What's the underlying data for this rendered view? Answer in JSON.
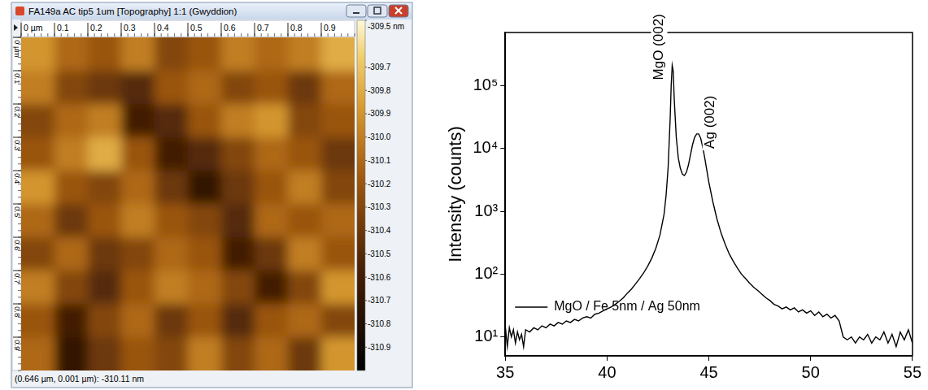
{
  "afm_window": {
    "title": "FA149a AC tip5 1um [Topography] 1:1 (Gwyddion)",
    "x_ruler": [
      {
        "value": 0,
        "label": "0 µm"
      },
      0.1,
      0.2,
      0.3,
      0.4,
      0.5,
      0.6,
      0.7,
      0.8,
      0.9
    ],
    "y_ruler": [
      {
        "value": 0,
        "label": "0 µm"
      },
      0.1,
      0.2,
      0.3,
      0.4,
      0.5,
      0.6,
      0.7,
      0.8,
      0.9
    ],
    "image": {
      "xlim": [
        0,
        1
      ],
      "ylim": [
        0,
        1
      ],
      "cells": [
        [
          -309.9,
          -310.1,
          -310.2,
          -310.0,
          -310.3,
          -310.2,
          -310.0,
          -310.1,
          -310.0,
          -309.8
        ],
        [
          -310.0,
          -310.3,
          -310.4,
          -310.5,
          -310.2,
          -310.1,
          -310.3,
          -310.2,
          -310.4,
          -310.1
        ],
        [
          -310.3,
          -310.1,
          -310.0,
          -310.6,
          -310.5,
          -310.2,
          -310.0,
          -309.9,
          -310.3,
          -310.2
        ],
        [
          -310.2,
          -310.0,
          -309.8,
          -310.2,
          -310.6,
          -310.5,
          -310.3,
          -310.1,
          -310.2,
          -310.4
        ],
        [
          -309.9,
          -310.2,
          -310.3,
          -310.1,
          -310.4,
          -310.7,
          -310.4,
          -310.2,
          -310.0,
          -310.3
        ],
        [
          -310.1,
          -310.4,
          -310.2,
          -310.0,
          -310.2,
          -310.3,
          -310.5,
          -310.1,
          -310.2,
          -310.1
        ],
        [
          -310.3,
          -310.1,
          -310.4,
          -310.3,
          -310.1,
          -310.2,
          -310.6,
          -310.4,
          -310.0,
          -310.2
        ],
        [
          -310.0,
          -310.3,
          -310.5,
          -310.2,
          -310.0,
          -310.1,
          -310.3,
          -310.6,
          -310.3,
          -309.9
        ],
        [
          -310.2,
          -310.6,
          -310.3,
          -310.1,
          -310.4,
          -310.2,
          -310.5,
          -310.2,
          -310.1,
          -310.3
        ],
        [
          -310.1,
          -310.7,
          -310.4,
          -310.2,
          -310.3,
          -310.0,
          -310.3,
          -310.1,
          -310.4,
          -309.9
        ]
      ]
    },
    "colorbar": {
      "range": [
        -311.0,
        -309.5
      ],
      "ticks": [
        {
          "value": -309.5,
          "label": "-309.5 nm"
        },
        -309.7,
        -309.8,
        -309.9,
        {
          "value": -310.0,
          "label": "-310.0"
        },
        -310.1,
        -310.2,
        -310.3,
        -310.4,
        -310.5,
        -310.6,
        -310.7,
        -310.8,
        -310.9
      ]
    },
    "status_bar": "(0.646 µm, 0.001 µm): -310.11 nm"
  },
  "chart_data": {
    "type": "line",
    "ylabel": "Intensity (counts)",
    "x": [
      35.0,
      35.1,
      35.2,
      35.3,
      35.4,
      35.5,
      35.6,
      35.7,
      35.8,
      35.9,
      36.0,
      36.2,
      36.4,
      36.6,
      36.8,
      37.0,
      37.2,
      37.4,
      37.6,
      37.8,
      38.0,
      38.2,
      38.4,
      38.6,
      38.8,
      39.0,
      39.2,
      39.4,
      39.6,
      39.8,
      40.0,
      40.2,
      40.4,
      40.6,
      40.8,
      41.0,
      41.2,
      41.4,
      41.6,
      41.8,
      42.0,
      42.2,
      42.4,
      42.6,
      42.8,
      42.9,
      43.0,
      43.1,
      43.15,
      43.2,
      43.25,
      43.3,
      43.4,
      43.5,
      43.6,
      43.7,
      43.8,
      43.9,
      44.0,
      44.1,
      44.2,
      44.3,
      44.4,
      44.5,
      44.6,
      44.7,
      44.8,
      44.9,
      45.0,
      45.2,
      45.4,
      45.6,
      45.8,
      46.0,
      46.2,
      46.4,
      46.6,
      46.8,
      47.0,
      47.2,
      47.4,
      47.6,
      47.8,
      48.0,
      48.2,
      48.4,
      48.6,
      48.8,
      49.0,
      49.2,
      49.4,
      49.6,
      49.8,
      50.0,
      50.2,
      50.4,
      50.6,
      50.8,
      51.0,
      51.2,
      51.4,
      51.6,
      51.8,
      52.0,
      52.2,
      52.4,
      52.6,
      52.8,
      53.0,
      53.2,
      53.4,
      53.6,
      53.8,
      54.0,
      54.2,
      54.4,
      54.6,
      54.8,
      55.0
    ],
    "series": [
      {
        "name": "MgO / Fe 5nm / Ag 50nm",
        "color": "#000000",
        "values": [
          15,
          7,
          14,
          10,
          13,
          8,
          12,
          9,
          11,
          7,
          13,
          12,
          14,
          13,
          15,
          14,
          16,
          15,
          17,
          16,
          18,
          17,
          19,
          18,
          20,
          21,
          20,
          23,
          24,
          26,
          28,
          30,
          33,
          37,
          42,
          50,
          58,
          70,
          85,
          105,
          135,
          180,
          260,
          420,
          900,
          1800,
          5000,
          30000,
          100000,
          210000,
          170000,
          60000,
          15000,
          7000,
          4800,
          3900,
          3700,
          4200,
          5500,
          8000,
          11500,
          15000,
          17000,
          17000,
          14500,
          10500,
          7000,
          4500,
          2900,
          1400,
          750,
          450,
          300,
          210,
          160,
          125,
          100,
          85,
          72,
          62,
          55,
          48,
          42,
          38,
          33,
          31,
          28,
          30,
          27,
          29,
          25,
          27,
          24,
          26,
          22,
          25,
          21,
          23,
          20,
          22,
          18,
          10,
          9,
          10,
          8,
          10,
          9,
          11,
          8,
          10,
          9,
          12,
          8,
          11,
          7,
          12,
          9,
          13,
          8
        ]
      }
    ],
    "xlim": [
      35,
      55
    ],
    "xticks": [
      35,
      40,
      45,
      50,
      55
    ],
    "ylim": [
      5,
      700000
    ],
    "yticks": [
      {
        "value": 10,
        "label": "10¹"
      },
      {
        "value": 100,
        "label": "10²"
      },
      {
        "value": 1000,
        "label": "10³"
      },
      {
        "value": 10000,
        "label": "10⁴"
      },
      {
        "value": 100000,
        "label": "10⁵"
      }
    ],
    "log": "y",
    "grid": false,
    "legend": "upper right",
    "annotations": [
      {
        "text": "MgO (002)",
        "x": 43.2
      },
      {
        "text": "Ag (002)",
        "x": 44.45
      }
    ]
  }
}
